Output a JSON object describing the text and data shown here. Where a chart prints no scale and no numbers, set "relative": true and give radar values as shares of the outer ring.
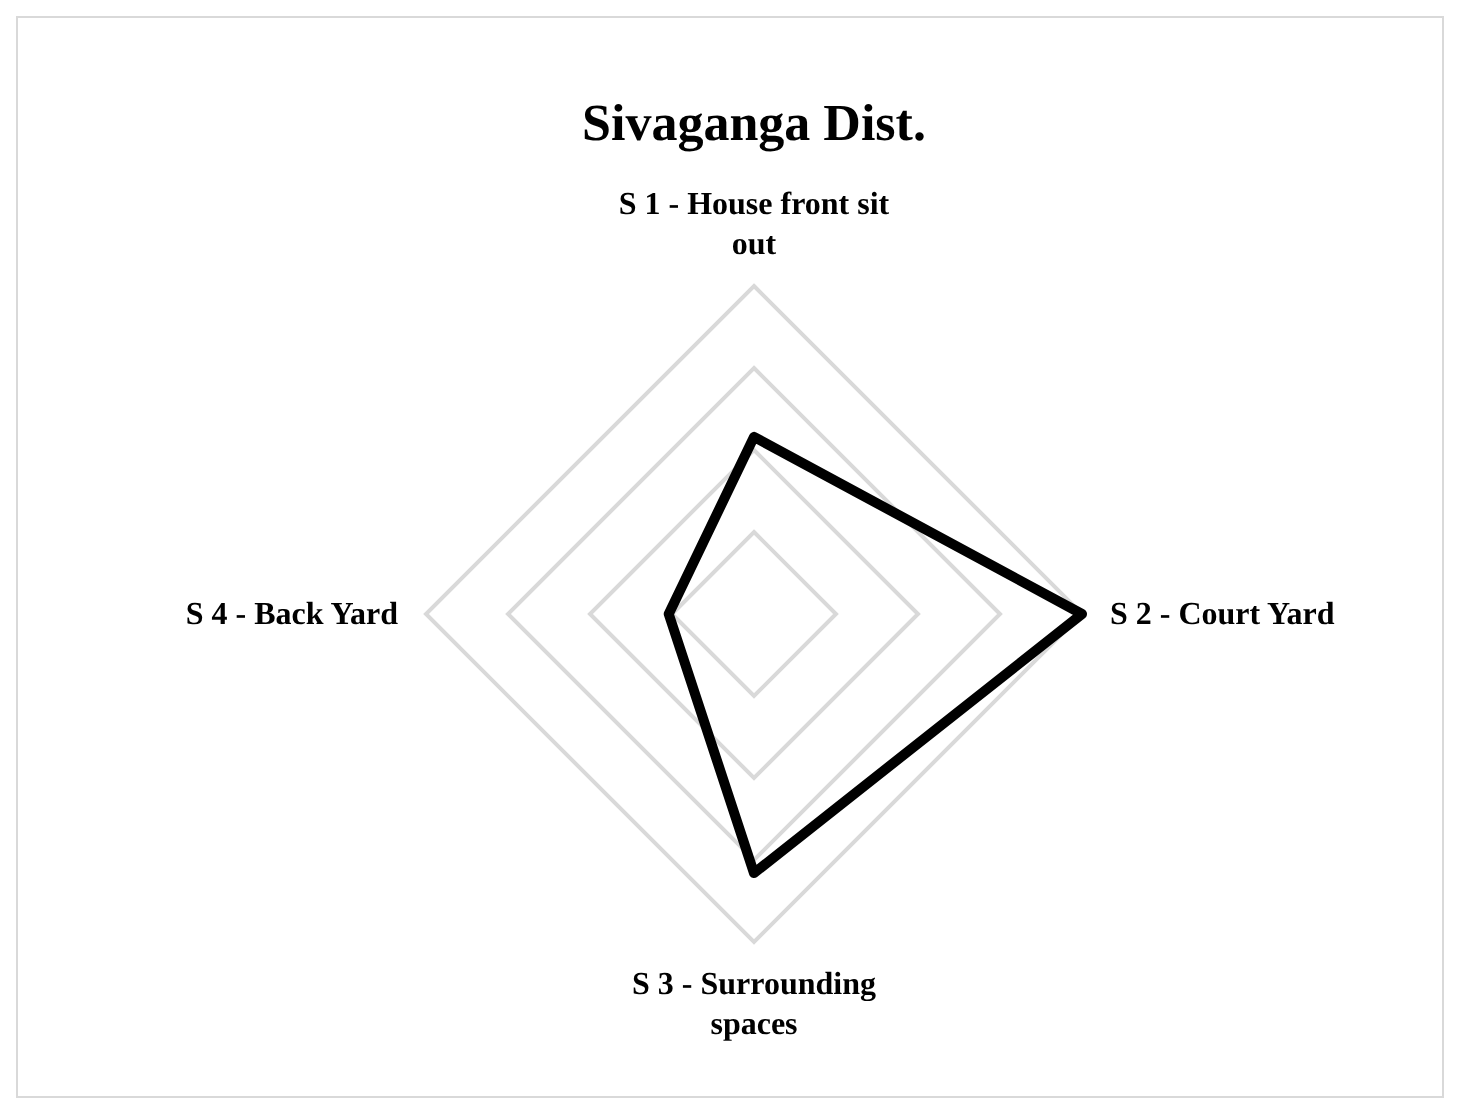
{
  "chart_data": {
    "type": "radar",
    "title": "Sivaganga Dist.",
    "relative": true,
    "categories": [
      "S 1 - House front sit out",
      "S 2 - Court Yard",
      "S 3 - Surrounding spaces",
      "S 4 - Back Yard"
    ],
    "series": [
      {
        "color": "#000000",
        "values": [
          0.54,
          1.0,
          0.79,
          0.26
        ]
      }
    ],
    "grid": true,
    "marker": "none"
  }
}
